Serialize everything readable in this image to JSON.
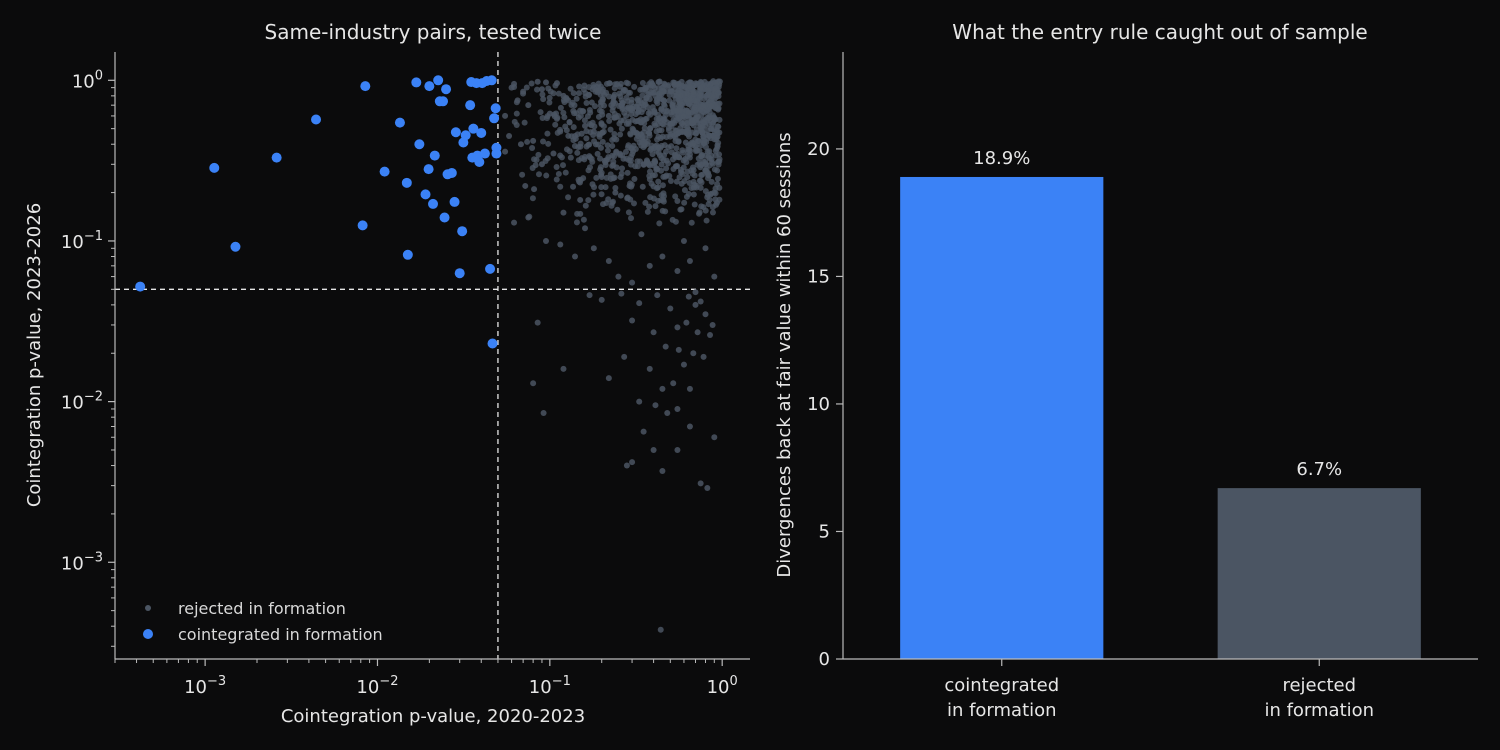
{
  "chart_data": [
    {
      "type": "scatter",
      "title": "Same-industry pairs, tested twice",
      "xlabel": "Cointegration p-value, 2020-2023",
      "ylabel": "Cointegration p-value, 2023-2026",
      "xscale": "log",
      "yscale": "log",
      "xlim": [
        0.0003,
        1.45
      ],
      "ylim": [
        0.00025,
        1.5
      ],
      "xticks": [
        {
          "value": 0.001,
          "base": "10",
          "exp": "−3"
        },
        {
          "value": 0.01,
          "base": "10",
          "exp": "−2"
        },
        {
          "value": 0.1,
          "base": "10",
          "exp": "−1"
        },
        {
          "value": 1,
          "base": "10",
          "exp": "0"
        }
      ],
      "yticks": [
        {
          "value": 0.001,
          "base": "10",
          "exp": "−3"
        },
        {
          "value": 0.01,
          "base": "10",
          "exp": "−2"
        },
        {
          "value": 0.1,
          "base": "10",
          "exp": "−1"
        },
        {
          "value": 1,
          "base": "10",
          "exp": "0"
        }
      ],
      "threshold": 0.05,
      "legend_position": "lower-left",
      "series": [
        {
          "name": "rejected in formation",
          "color": "#4b5563",
          "points": [
            [
              0.06,
              0.9
            ],
            [
              0.062,
              0.95
            ],
            [
              0.07,
              0.85
            ],
            [
              0.085,
              0.98
            ],
            [
              0.095,
              0.97
            ],
            [
              0.11,
              0.96
            ],
            [
              0.09,
              0.88
            ],
            [
              0.12,
              0.8
            ],
            [
              0.065,
              0.75
            ],
            [
              0.075,
              0.7
            ],
            [
              0.1,
              0.62
            ],
            [
              0.13,
              0.55
            ],
            [
              0.055,
              0.6
            ],
            [
              0.058,
              0.45
            ],
            [
              0.068,
              0.4
            ],
            [
              0.08,
              0.42
            ],
            [
              0.09,
              0.3
            ],
            [
              0.105,
              0.35
            ],
            [
              0.14,
              0.45
            ],
            [
              0.16,
              0.52
            ],
            [
              0.18,
              0.48
            ],
            [
              0.22,
              0.6
            ],
            [
              0.26,
              0.7
            ],
            [
              0.3,
              0.65
            ],
            [
              0.055,
              0.36
            ],
            [
              0.072,
              0.22
            ],
            [
              0.081,
              0.21
            ],
            [
              0.12,
              0.15
            ],
            [
              0.15,
              0.18
            ],
            [
              0.2,
              0.25
            ],
            [
              0.24,
              0.2
            ],
            [
              0.29,
              0.22
            ],
            [
              0.35,
              0.3
            ],
            [
              0.42,
              0.28
            ],
            [
              0.075,
              0.14
            ],
            [
              0.095,
              0.1
            ],
            [
              0.115,
              0.095
            ],
            [
              0.14,
              0.08
            ],
            [
              0.18,
              0.09
            ],
            [
              0.22,
              0.075
            ],
            [
              0.25,
              0.06
            ],
            [
              0.3,
              0.055
            ],
            [
              0.38,
              0.07
            ],
            [
              0.45,
              0.08
            ],
            [
              0.55,
              0.065
            ],
            [
              0.65,
              0.075
            ],
            [
              0.8,
              0.09
            ],
            [
              0.9,
              0.06
            ],
            [
              0.062,
              0.13
            ],
            [
              0.16,
              0.12
            ],
            [
              0.34,
              0.11
            ],
            [
              0.6,
              0.1
            ],
            [
              0.7,
              0.048
            ],
            [
              0.75,
              0.042
            ],
            [
              0.8,
              0.035
            ],
            [
              0.88,
              0.03
            ],
            [
              0.7,
              0.04
            ],
            [
              0.64,
              0.045
            ],
            [
              0.5,
              0.038
            ],
            [
              0.42,
              0.046
            ],
            [
              0.33,
              0.041
            ],
            [
              0.26,
              0.047
            ],
            [
              0.2,
              0.043
            ],
            [
              0.17,
              0.046
            ],
            [
              0.55,
              0.029
            ],
            [
              0.62,
              0.031
            ],
            [
              0.72,
              0.027
            ],
            [
              0.85,
              0.026
            ],
            [
              0.4,
              0.027
            ],
            [
              0.3,
              0.032
            ],
            [
              0.085,
              0.031
            ],
            [
              0.47,
              0.022
            ],
            [
              0.56,
              0.021
            ],
            [
              0.68,
              0.02
            ],
            [
              0.78,
              0.019
            ],
            [
              0.6,
              0.017
            ],
            [
              0.38,
              0.016
            ],
            [
              0.27,
              0.019
            ],
            [
              0.22,
              0.014
            ],
            [
              0.45,
              0.012
            ],
            [
              0.52,
              0.013
            ],
            [
              0.65,
              0.012
            ],
            [
              0.12,
              0.016
            ],
            [
              0.08,
              0.013
            ],
            [
              0.33,
              0.01
            ],
            [
              0.41,
              0.0095
            ],
            [
              0.55,
              0.009
            ],
            [
              0.48,
              0.0085
            ],
            [
              0.092,
              0.0085
            ],
            [
              0.65,
              0.007
            ],
            [
              0.35,
              0.0065
            ],
            [
              0.4,
              0.005
            ],
            [
              0.55,
              0.005
            ],
            [
              0.9,
              0.006
            ],
            [
              0.3,
              0.0042
            ],
            [
              0.28,
              0.004
            ],
            [
              0.45,
              0.0037
            ],
            [
              0.75,
              0.0031
            ],
            [
              0.82,
              0.0029
            ],
            [
              0.44,
              0.00038
            ]
          ]
        },
        {
          "name": "cointegrated in formation",
          "color": "#3b82f6",
          "points": [
            [
              0.00042,
              0.052
            ],
            [
              0.00113,
              0.285
            ],
            [
              0.0015,
              0.092
            ],
            [
              0.0026,
              0.33
            ],
            [
              0.0044,
              0.57
            ],
            [
              0.0082,
              0.125
            ],
            [
              0.0085,
              0.92
            ],
            [
              0.011,
              0.27
            ],
            [
              0.0135,
              0.545
            ],
            [
              0.0148,
              0.23
            ],
            [
              0.015,
              0.082
            ],
            [
              0.0168,
              0.97
            ],
            [
              0.0175,
              0.4
            ],
            [
              0.019,
              0.195
            ],
            [
              0.0198,
              0.28
            ],
            [
              0.02,
              0.92
            ],
            [
              0.021,
              0.17
            ],
            [
              0.0215,
              0.34
            ],
            [
              0.0225,
              1.0
            ],
            [
              0.023,
              0.74
            ],
            [
              0.024,
              0.74
            ],
            [
              0.0245,
              0.14
            ],
            [
              0.025,
              0.88
            ],
            [
              0.0255,
              0.26
            ],
            [
              0.027,
              0.265
            ],
            [
              0.028,
              0.175
            ],
            [
              0.0285,
              0.475
            ],
            [
              0.03,
              0.063
            ],
            [
              0.031,
              0.115
            ],
            [
              0.0315,
              0.41
            ],
            [
              0.0325,
              0.455
            ],
            [
              0.0345,
              0.7
            ],
            [
              0.035,
              0.975
            ],
            [
              0.0355,
              0.33
            ],
            [
              0.036,
              0.5
            ],
            [
              0.0375,
              0.96
            ],
            [
              0.038,
              0.34
            ],
            [
              0.039,
              0.31
            ],
            [
              0.04,
              0.47
            ],
            [
              0.0405,
              0.96
            ],
            [
              0.042,
              0.35
            ],
            [
              0.043,
              0.99
            ],
            [
              0.045,
              0.067
            ],
            [
              0.046,
              1.0
            ],
            [
              0.0465,
              0.023
            ],
            [
              0.0475,
              0.58
            ],
            [
              0.0485,
              0.67
            ],
            [
              0.049,
              0.38
            ],
            [
              0.049,
              0.35
            ]
          ]
        }
      ]
    },
    {
      "type": "bar",
      "title": "What the entry rule caught out of sample",
      "ylabel": "Divergences back at fair value within 60 sessions",
      "ylim": [
        0,
        23.8
      ],
      "yticks": [
        0,
        5,
        10,
        15,
        20
      ],
      "bars": [
        {
          "label_line1": "cointegrated",
          "label_line2": "in formation",
          "value": 18.9,
          "value_text": "18.9%",
          "color": "#3b82f6"
        },
        {
          "label_line1": "rejected",
          "label_line2": "in formation",
          "value": 6.7,
          "value_text": "6.7%",
          "color": "#4b5563"
        }
      ]
    }
  ]
}
